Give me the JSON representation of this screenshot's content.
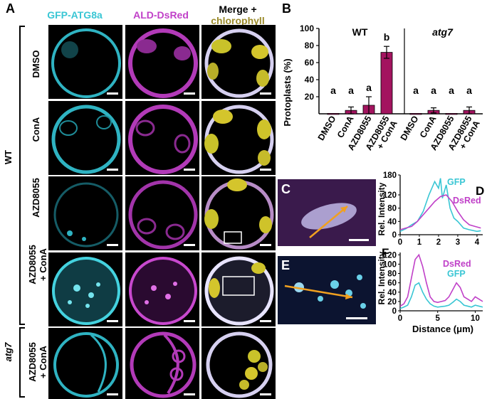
{
  "panel_letters": {
    "a": "A",
    "b": "B",
    "c": "C",
    "d": "D",
    "e": "E",
    "f": "F"
  },
  "columns": {
    "gfp": "GFP-ATG8a",
    "dsred": "ALD-DsRed",
    "merge_line1": "Merge +",
    "merge_line2": "chlorophyll"
  },
  "colors": {
    "gfp": "#39c6d4",
    "dsred": "#c040c8",
    "chlorophyll": "#9a8a2a",
    "bar": "#a3145f"
  },
  "genotypes": {
    "wt": "WT",
    "atg7": "atg7"
  },
  "rows": [
    {
      "line1": "DMSO",
      "line2": ""
    },
    {
      "line1": "ConA",
      "line2": ""
    },
    {
      "line1": "AZD8055",
      "line2": ""
    },
    {
      "line1": "AZD8055",
      "line2": "+ ConA"
    },
    {
      "line1": "AZD8055",
      "line2": "+ ConA"
    }
  ],
  "chart_data": [
    {
      "type": "bar",
      "panel": "B",
      "ylabel": "Protoplasts (%)",
      "ylim": [
        0,
        100
      ],
      "yticks": [
        20,
        40,
        60,
        80,
        100
      ],
      "groups": [
        {
          "title": "WT",
          "categories": [
            "DMSO",
            "ConA",
            "AZD8055",
            "AZD8055 + ConA"
          ],
          "values": [
            0.5,
            4,
            10,
            72
          ],
          "errors": [
            0,
            4,
            10,
            7
          ],
          "letters": [
            "a",
            "a",
            "a",
            "b"
          ]
        },
        {
          "title": "atg7",
          "categories": [
            "DMSO",
            "ConA",
            "AZD8055",
            "AZD8055 + ConA"
          ],
          "values": [
            0.5,
            4,
            0.5,
            4
          ],
          "errors": [
            0,
            3,
            0,
            4
          ],
          "letters": [
            "a",
            "a",
            "a",
            "a"
          ]
        }
      ]
    },
    {
      "type": "line",
      "panel": "D",
      "ylabel": "Rel. Intensity",
      "xlim": [
        0,
        4.3
      ],
      "ylim": [
        0,
        180
      ],
      "xticks": [
        0,
        1,
        2,
        3,
        4
      ],
      "yticks": [
        0,
        40,
        80,
        120,
        180
      ],
      "series": [
        {
          "name": "GFP",
          "x": [
            0,
            0.3,
            0.6,
            0.9,
            1.2,
            1.5,
            1.8,
            2.0,
            2.1,
            2.2,
            2.4,
            2.6,
            2.8,
            3.0,
            3.3,
            3.6,
            4.0,
            4.2
          ],
          "y": [
            10,
            18,
            30,
            40,
            70,
            120,
            160,
            140,
            170,
            110,
            150,
            80,
            50,
            40,
            20,
            15,
            10,
            12
          ]
        },
        {
          "name": "DsRed",
          "x": [
            0,
            0.3,
            0.6,
            0.9,
            1.2,
            1.5,
            1.8,
            2.1,
            2.4,
            2.7,
            3.0,
            3.3,
            3.6,
            3.9,
            4.2
          ],
          "y": [
            15,
            20,
            25,
            40,
            60,
            80,
            100,
            115,
            120,
            100,
            70,
            45,
            30,
            25,
            20
          ]
        }
      ]
    },
    {
      "type": "line",
      "panel": "F",
      "xlabel": "Distance (μm)",
      "ylabel": "Rel. Intensity",
      "xlim": [
        0,
        11
      ],
      "ylim": [
        0,
        125
      ],
      "xticks": [
        0,
        5,
        10
      ],
      "yticks": [
        0,
        20,
        40,
        60,
        80,
        100,
        120
      ],
      "series": [
        {
          "name": "DsRed",
          "x": [
            0,
            0.5,
            1,
            1.5,
            2,
            2.5,
            3,
            3.5,
            4,
            4.5,
            5,
            5.5,
            6,
            6.5,
            7,
            7.5,
            8,
            8.5,
            9,
            9.5,
            10,
            10.5,
            11
          ],
          "y": [
            10,
            15,
            30,
            70,
            110,
            120,
            95,
            60,
            30,
            20,
            18,
            20,
            22,
            30,
            45,
            60,
            50,
            30,
            25,
            20,
            30,
            25,
            20
          ]
        },
        {
          "name": "GFP",
          "x": [
            0,
            0.5,
            1,
            1.5,
            2,
            2.5,
            3,
            3.5,
            4,
            4.5,
            5,
            5.5,
            6,
            6.5,
            7,
            7.5,
            8,
            8.5,
            9,
            9.5,
            10,
            10.5,
            11
          ],
          "y": [
            5,
            8,
            12,
            30,
            55,
            60,
            40,
            25,
            15,
            10,
            8,
            9,
            10,
            12,
            18,
            25,
            20,
            12,
            10,
            8,
            12,
            10,
            8
          ]
        }
      ]
    }
  ]
}
